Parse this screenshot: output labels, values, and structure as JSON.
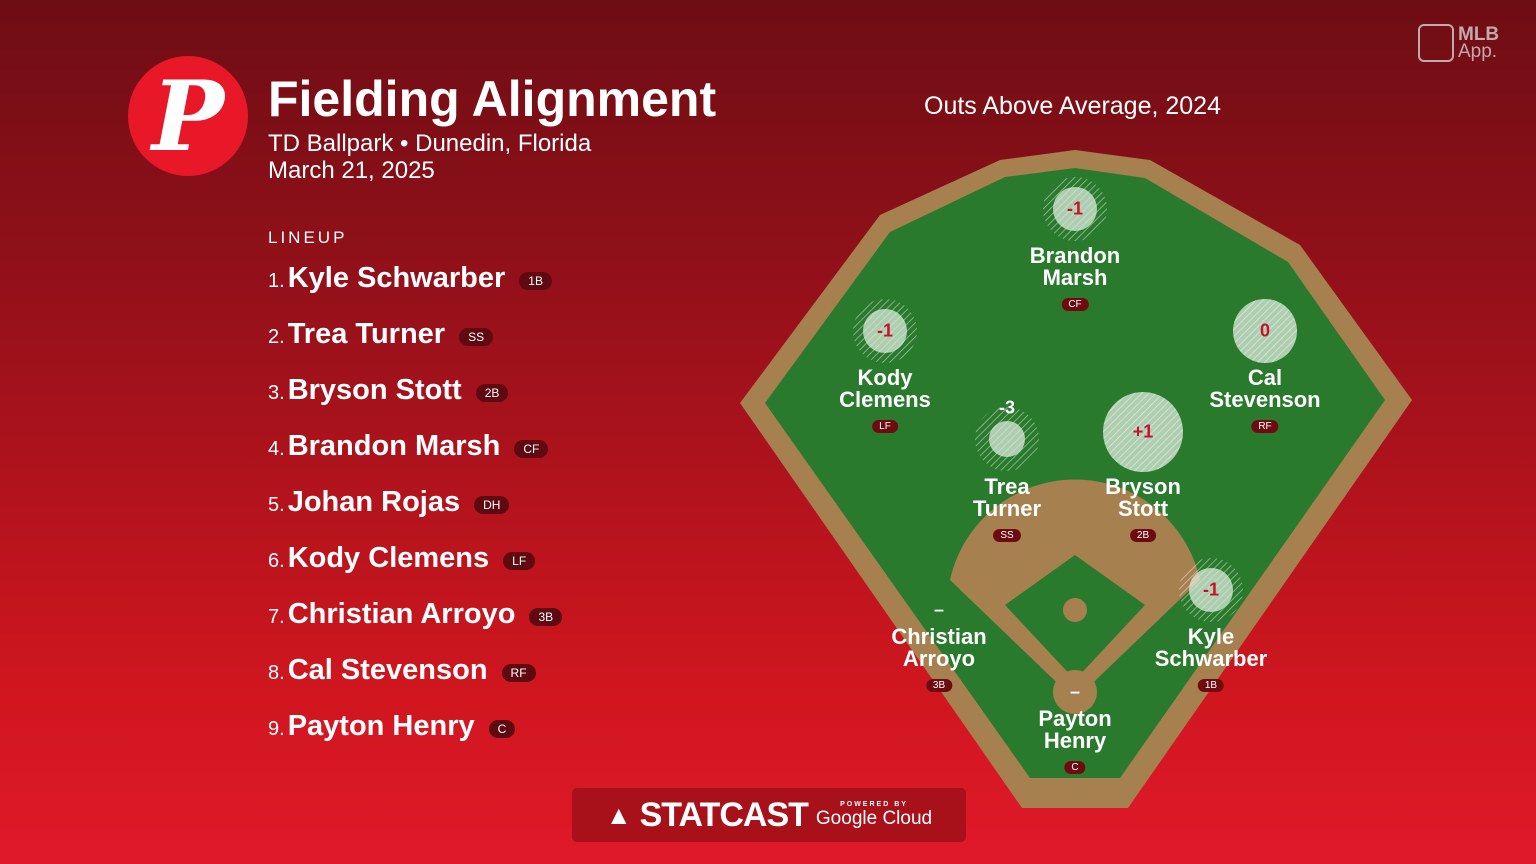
{
  "header": {
    "logo_letter": "P",
    "title": "Fielding Alignment",
    "venue": "TD Ballpark • Dunedin, Florida",
    "date": "March 21, 2025"
  },
  "brand": {
    "app_line1": "MLB",
    "app_line2": "App."
  },
  "lineup": {
    "heading": "LINEUP",
    "items": [
      {
        "num": "1.",
        "name": "Kyle Schwarber",
        "pos": "1B"
      },
      {
        "num": "2.",
        "name": "Trea Turner",
        "pos": "SS"
      },
      {
        "num": "3.",
        "name": "Bryson Stott",
        "pos": "2B"
      },
      {
        "num": "4.",
        "name": "Brandon Marsh",
        "pos": "CF"
      },
      {
        "num": "5.",
        "name": "Johan Rojas",
        "pos": "DH"
      },
      {
        "num": "6.",
        "name": "Kody Clemens",
        "pos": "LF"
      },
      {
        "num": "7.",
        "name": "Christian Arroyo",
        "pos": "3B"
      },
      {
        "num": "8.",
        "name": "Cal Stevenson",
        "pos": "RF"
      },
      {
        "num": "9.",
        "name": "Payton Henry",
        "pos": "C"
      }
    ]
  },
  "field": {
    "subtitle": "Outs Above Average, 2024",
    "colors": {
      "grass": "#2a7a2e",
      "dirt": "#a6804f",
      "value": "#c8102e"
    },
    "players": [
      {
        "first": "Brandon",
        "last": "Marsh",
        "pos": "CF",
        "oaa": "-1"
      },
      {
        "first": "Kody",
        "last": "Clemens",
        "pos": "LF",
        "oaa": "-1"
      },
      {
        "first": "Cal",
        "last": "Stevenson",
        "pos": "RF",
        "oaa": "0"
      },
      {
        "first": "Trea",
        "last": "Turner",
        "pos": "SS",
        "oaa": "-3"
      },
      {
        "first": "Bryson",
        "last": "Stott",
        "pos": "2B",
        "oaa": "+1"
      },
      {
        "first": "Christian",
        "last": "Arroyo",
        "pos": "3B",
        "oaa": "–"
      },
      {
        "first": "Kyle",
        "last": "Schwarber",
        "pos": "1B",
        "oaa": "-1"
      },
      {
        "first": "Payton",
        "last": "Henry",
        "pos": "C",
        "oaa": "–"
      }
    ]
  },
  "footer": {
    "statcast": "STATCAST",
    "powered_by": "POWERED BY",
    "google_cloud": "Google Cloud"
  }
}
